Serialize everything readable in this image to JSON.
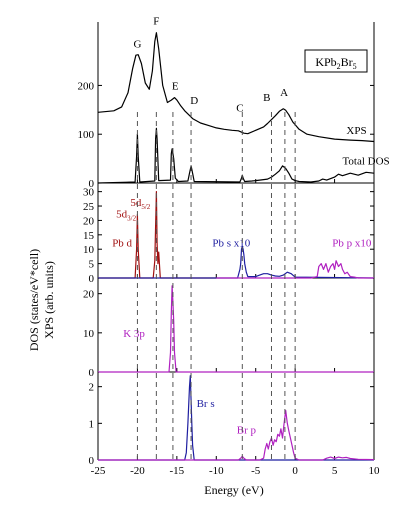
{
  "chart_data": {
    "type": "line",
    "xlabel": "Energy (eV)",
    "ylabel_line1": "DOS (states/eV*cell)",
    "ylabel_line2": "XPS (arb. units)",
    "xlim": [
      -25,
      10
    ],
    "xticks": [
      -25,
      -20,
      -15,
      -10,
      -5,
      0,
      5,
      10
    ],
    "xtick_labels": [
      "-25",
      "-20",
      "-15",
      "-10",
      "-5",
      "0",
      "5",
      "10"
    ],
    "reference_lines_x": [
      -20.0,
      -17.6,
      -15.5,
      -13.2,
      -6.7,
      -3.0,
      -1.3,
      0.0
    ],
    "compound": {
      "prefix": "KPb",
      "sub1": "2",
      "mid": "Br",
      "sub2": "5"
    },
    "panels": [
      {
        "id": "xps",
        "ylim": [
          0,
          330
        ],
        "yticks": [
          0,
          100,
          200
        ],
        "peak_labels": [
          {
            "text": "G",
            "x": -20.0,
            "y": 278
          },
          {
            "text": "F",
            "x": -17.6,
            "y": 325
          },
          {
            "text": "E",
            "x": -15.2,
            "y": 192
          },
          {
            "text": "D",
            "x": -12.8,
            "y": 162
          },
          {
            "text": "C",
            "x": -7.0,
            "y": 147
          },
          {
            "text": "B",
            "x": -3.6,
            "y": 168
          },
          {
            "text": "A",
            "x": -1.4,
            "y": 178
          }
        ],
        "series": [
          {
            "name": "XPS",
            "x": [
              -25,
              -23,
              -22,
              -21.2,
              -20.6,
              -20.2,
              -19.9,
              -19.5,
              -19.0,
              -18.5,
              -18.1,
              -17.8,
              -17.6,
              -17.3,
              -16.8,
              -16.2,
              -15.7,
              -15.3,
              -15.0,
              -14.5,
              -14.0,
              -13.5,
              -13.0,
              -12.0,
              -11.0,
              -10.0,
              -9.0,
              -8.0,
              -7.2,
              -6.5,
              -6.0,
              -5.0,
              -4.0,
              -3.5,
              -3.0,
              -2.5,
              -2.0,
              -1.5,
              -1.2,
              -0.8,
              -0.3,
              0.5,
              1.5,
              3.0,
              5.0,
              7.0,
              8.5,
              10.0
            ],
            "y": [
              145,
              148,
              156,
              185,
              235,
              262,
              263,
              245,
              205,
              192,
              230,
              290,
              308,
              275,
              200,
              165,
              170,
              175,
              170,
              158,
              148,
              140,
              132,
              123,
              118,
              113,
              110,
              108,
              107,
              102,
              101,
              108,
              115,
              122,
              130,
              138,
              147,
              152,
              149,
              140,
              125,
              110,
              100,
              95,
              90,
              88,
              87,
              85
            ]
          },
          {
            "name": "Total DOS",
            "x": [
              -25,
              -20.3,
              -20.1,
              -20.0,
              -19.9,
              -19.7,
              -17.8,
              -17.7,
              -17.6,
              -17.5,
              -17.3,
              -15.8,
              -15.7,
              -15.6,
              -15.4,
              -15.2,
              -14.8,
              -13.6,
              -13.4,
              -13.2,
              -13.0,
              -12.8,
              -7.0,
              -6.8,
              -6.7,
              -6.6,
              -6.4,
              -5.5,
              -5.0,
              -3.5,
              -3.0,
              -2.5,
              -2.0,
              -1.6,
              -1.2,
              -0.8,
              -0.4,
              0.0,
              0.5,
              2.0,
              3.0,
              3.5,
              4.0,
              5.0,
              5.5,
              6.0,
              7.0,
              8.0,
              9.0,
              10.0
            ],
            "y": [
              0,
              2,
              55,
              100,
              55,
              2,
              4,
              90,
              112,
              90,
              5,
              6,
              60,
              70,
              50,
              10,
              3,
              4,
              20,
              35,
              20,
              3,
              2,
              10,
              16,
              10,
              3,
              4,
              5,
              8,
              12,
              18,
              25,
              35,
              30,
              20,
              8,
              5,
              3,
              2,
              4,
              8,
              6,
              12,
              18,
              15,
              20,
              16,
              22,
              20
            ]
          }
        ],
        "series_labels": [
          {
            "text": "XPS",
            "x": 6.5,
            "y": 100
          },
          {
            "text": "Total DOS",
            "x": 6.0,
            "y": 38
          }
        ]
      },
      {
        "id": "pb",
        "ylim": [
          0,
          33
        ],
        "yticks": [
          0,
          5,
          10,
          15,
          20,
          25,
          30
        ],
        "series": [
          {
            "name": "Pb d",
            "color": "#a01010",
            "x": [
              -25,
              -20.3,
              -20.1,
              -20.0,
              -19.9,
              -19.7,
              -18.0,
              -17.8,
              -17.6,
              -17.5,
              -17.4,
              -17.3,
              -17.1,
              -10
            ],
            "y": [
              0,
              0,
              10,
              22,
              10,
              0,
              0,
              6,
              30,
              12,
              5,
              9,
              0,
              0
            ]
          },
          {
            "name": "Pb s x10",
            "color": "#1e1ea0",
            "x": [
              -25,
              -7.3,
              -7.0,
              -6.9,
              -6.8,
              -6.7,
              -6.6,
              -6.5,
              -6.4,
              -6.2,
              -6.0,
              -5.0,
              -4.5,
              -4.0,
              -3.5,
              -3.0,
              -2.5,
              -2.0,
              -1.5,
              -1.0,
              -0.5,
              0.0,
              10
            ],
            "y": [
              0,
              0,
              3,
              5,
              10,
              11,
              10,
              8,
              5,
              2,
              0.5,
              0.5,
              1.0,
              1.5,
              1.5,
              1.0,
              0.7,
              0.6,
              1.0,
              2.0,
              1.5,
              0.3,
              0
            ]
          },
          {
            "name": "Pb p x10",
            "color": "#b020c0",
            "x": [
              -10,
              2.0,
              2.8,
              3.0,
              3.3,
              3.6,
              3.9,
              4.2,
              4.5,
              4.8,
              5.0,
              5.2,
              5.5,
              5.8,
              6.0,
              6.3,
              6.6,
              7.0,
              7.5,
              8.0,
              10
            ],
            "y": [
              0,
              0,
              0.5,
              4,
              5,
              3,
              5,
              2,
              4,
              5,
              3,
              6,
              4,
              5,
              3,
              1.5,
              2,
              0.5,
              0.3,
              0,
              0
            ]
          }
        ],
        "labels": [
          {
            "text": "Pb d",
            "x": -23.2,
            "y": 11,
            "color": "#a01010"
          },
          {
            "text": "Pb s x10",
            "x": -10.5,
            "y": 11,
            "color": "#1e1ea0"
          },
          {
            "text": "Pb p x10",
            "x": 4.7,
            "y": 11,
            "color": "#b020c0"
          }
        ],
        "orbital_labels": [
          {
            "main": "5d",
            "sub": "3/2",
            "x": -22.7,
            "y": 21,
            "color": "#a01010"
          },
          {
            "main": "5d",
            "sub": "5/2",
            "x": -20.9,
            "y": 25,
            "color": "#a01010"
          }
        ]
      },
      {
        "id": "k",
        "ylim": [
          0,
          24
        ],
        "yticks": [
          0,
          10,
          20
        ],
        "series": [
          {
            "name": "K 3p",
            "color": "#b020c0",
            "x": [
              -25,
              -16.0,
              -15.8,
              -15.7,
              -15.6,
              -15.5,
              -15.4,
              -15.3,
              -15.1,
              10
            ],
            "y": [
              0,
              0,
              5,
              15,
              22,
              18,
              13,
              5,
              0,
              0
            ]
          }
        ],
        "labels": [
          {
            "text": "K 3p",
            "x": -21.8,
            "y": 9,
            "color": "#b020c0"
          }
        ]
      },
      {
        "id": "br",
        "ylim": [
          0,
          2.4
        ],
        "yticks": [
          0,
          1,
          2
        ],
        "series": [
          {
            "name": "Br s",
            "color": "#1e1ea0",
            "x": [
              -25,
              -14.0,
              -13.8,
              -13.6,
              -13.4,
              -13.3,
              -13.2,
              -13.1,
              -13.0,
              -12.8,
              10
            ],
            "y": [
              0,
              0,
              0.2,
              1.0,
              2.0,
              2.3,
              1.6,
              1.0,
              0.4,
              0,
              0
            ]
          },
          {
            "name": "Br p",
            "color": "#b020c0",
            "x": [
              -25,
              -7.2,
              -6.9,
              -6.7,
              -6.5,
              -6.2,
              -4.5,
              -4.0,
              -3.8,
              -3.6,
              -3.4,
              -3.2,
              -3.0,
              -2.8,
              -2.6,
              -2.4,
              -2.2,
              -2.0,
              -1.8,
              -1.6,
              -1.4,
              -1.2,
              -1.0,
              -0.8,
              -0.6,
              -0.4,
              -0.2,
              0.0,
              0.5,
              3.5,
              4.0,
              4.5,
              5.0,
              5.5,
              6.0,
              6.5,
              7.0,
              8.0,
              10
            ],
            "y": [
              0,
              0,
              0.05,
              0.1,
              0.05,
              0,
              0,
              0.05,
              0.3,
              0.45,
              0.3,
              0.5,
              0.6,
              0.4,
              0.55,
              0.5,
              0.7,
              0.65,
              0.85,
              0.6,
              1.0,
              1.35,
              1.0,
              0.8,
              0.6,
              0.4,
              0.2,
              0.05,
              0,
              0,
              0.05,
              0.08,
              0.04,
              0.08,
              0.06,
              0.07,
              0.04,
              0.02,
              0.01
            ]
          }
        ],
        "labels": [
          {
            "text": "Br s",
            "x": -12.5,
            "y": 1.45,
            "color": "#1e1ea0"
          },
          {
            "text": "Br p",
            "x": -7.4,
            "y": 0.72,
            "color": "#b020c0"
          }
        ]
      }
    ]
  }
}
